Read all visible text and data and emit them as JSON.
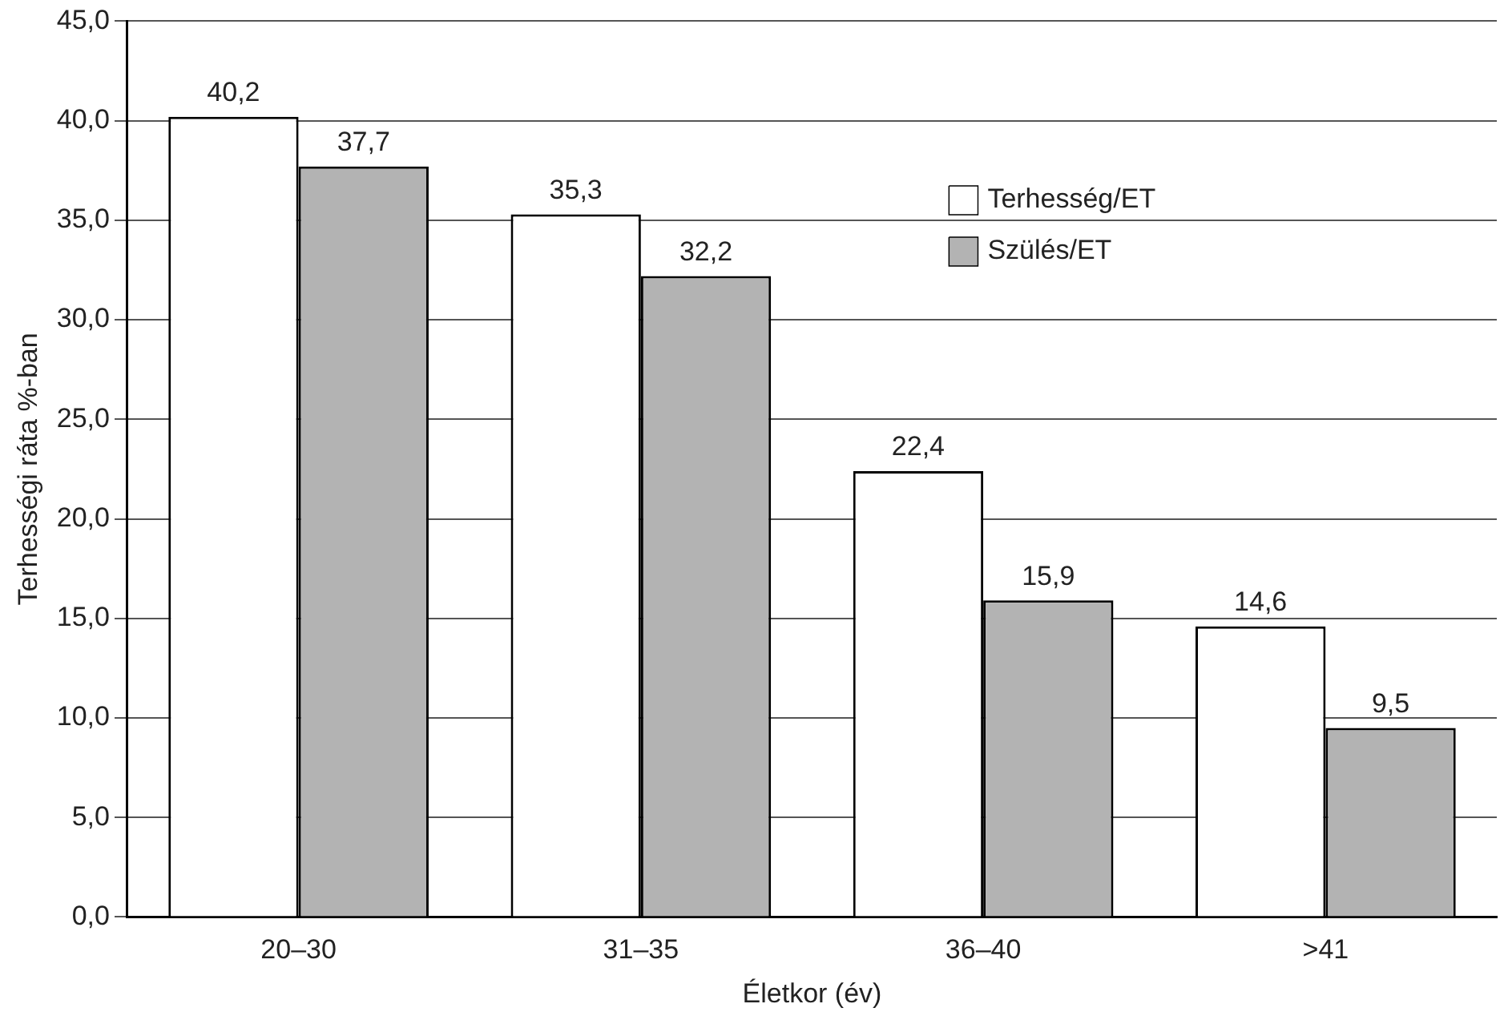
{
  "chart_data": {
    "type": "bar",
    "xlabel": "Életkor (év)",
    "ylabel": "Terhességi ráta %-ban",
    "categories": [
      "20–30",
      "31–35",
      "36–40",
      ">41"
    ],
    "series": [
      {
        "name": "Terhesség/ET",
        "color": "#ffffff",
        "values": [
          40.2,
          35.3,
          22.4,
          14.6
        ],
        "value_labels": [
          "40,2",
          "35,3",
          "22,4",
          "14,6"
        ]
      },
      {
        "name": "Szülés/ET",
        "color": "#b3b3b3",
        "values": [
          37.7,
          32.2,
          15.9,
          9.5
        ],
        "value_labels": [
          "37,7",
          "32,2",
          "15,9",
          "9,5"
        ]
      }
    ],
    "ylim": [
      0,
      45
    ],
    "yticks": [
      {
        "value": 0,
        "label": "0,0"
      },
      {
        "value": 5,
        "label": "5,0"
      },
      {
        "value": 10,
        "label": "10,0"
      },
      {
        "value": 15,
        "label": "15,0"
      },
      {
        "value": 20,
        "label": "20,0"
      },
      {
        "value": 25,
        "label": "25,0"
      },
      {
        "value": 30,
        "label": "30,0"
      },
      {
        "value": 35,
        "label": "35,0"
      },
      {
        "value": 40,
        "label": "40,0"
      },
      {
        "value": 45,
        "label": "45,0"
      }
    ],
    "grid": "y",
    "legend": "top right"
  }
}
